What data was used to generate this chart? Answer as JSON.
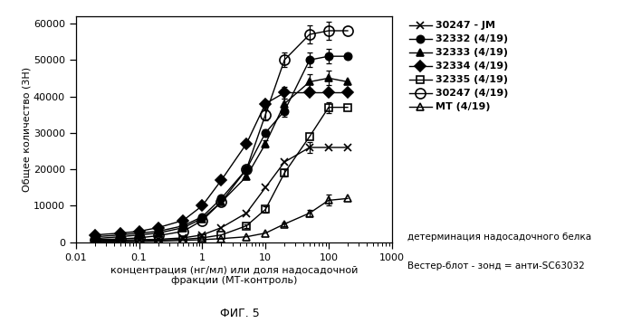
{
  "series": {
    "30247 - JM": {
      "x": [
        0.02,
        0.05,
        0.1,
        0.2,
        0.5,
        1,
        2,
        5,
        10,
        20,
        50,
        100,
        200
      ],
      "y": [
        500,
        600,
        700,
        800,
        1200,
        2000,
        4000,
        8000,
        15000,
        22000,
        26000,
        26000,
        26000
      ],
      "yerr": [
        0,
        0,
        0,
        0,
        0,
        0,
        0,
        0,
        0,
        0,
        1500,
        0,
        0
      ],
      "marker": "x",
      "markersize": 6,
      "linestyle": "-",
      "color": "black",
      "fillstyle": "full",
      "label": "30247 - JM"
    },
    "32332": {
      "x": [
        0.02,
        0.05,
        0.1,
        0.2,
        0.5,
        1,
        2,
        5,
        10,
        20,
        50,
        100,
        200
      ],
      "y": [
        1500,
        2000,
        2500,
        3000,
        4500,
        7000,
        12000,
        20000,
        30000,
        36000,
        50000,
        51000,
        51000
      ],
      "yerr": [
        0,
        0,
        0,
        0,
        0,
        0,
        0,
        500,
        1000,
        1500,
        2000,
        2000,
        0
      ],
      "marker": "o",
      "markersize": 6,
      "linestyle": "-",
      "color": "black",
      "fillstyle": "full",
      "label": "32332 (4/19)"
    },
    "32333": {
      "x": [
        0.02,
        0.05,
        0.1,
        0.2,
        0.5,
        1,
        2,
        5,
        10,
        20,
        50,
        100,
        200
      ],
      "y": [
        1000,
        1500,
        2000,
        2500,
        4000,
        6500,
        11000,
        18000,
        27000,
        38000,
        44000,
        45000,
        44000
      ],
      "yerr": [
        0,
        0,
        0,
        0,
        0,
        0,
        0,
        0,
        1000,
        1500,
        2000,
        2000,
        0
      ],
      "marker": "^",
      "markersize": 6,
      "linestyle": "-",
      "color": "black",
      "fillstyle": "full",
      "label": "32333 (4/19)"
    },
    "32334": {
      "x": [
        0.02,
        0.05,
        0.1,
        0.2,
        0.5,
        1,
        2,
        5,
        10,
        20,
        50,
        100,
        200
      ],
      "y": [
        2000,
        2500,
        3000,
        4000,
        6000,
        10000,
        17000,
        27000,
        38000,
        41000,
        41000,
        41000,
        41000
      ],
      "yerr": [
        0,
        0,
        0,
        0,
        0,
        0,
        0,
        500,
        1000,
        1500,
        0,
        0,
        0
      ],
      "marker": "D",
      "markersize": 6,
      "linestyle": "-",
      "color": "black",
      "fillstyle": "full",
      "label": "32334 (4/19)"
    },
    "32335": {
      "x": [
        0.02,
        0.05,
        0.1,
        0.2,
        0.5,
        1,
        2,
        5,
        10,
        20,
        50,
        100,
        200
      ],
      "y": [
        200,
        300,
        400,
        600,
        800,
        1200,
        2000,
        4500,
        9000,
        19000,
        29000,
        37000,
        37000
      ],
      "yerr": [
        0,
        0,
        0,
        0,
        0,
        0,
        0,
        500,
        800,
        1000,
        0,
        1500,
        0
      ],
      "marker": "s",
      "markersize": 6,
      "linestyle": "-",
      "color": "black",
      "fillstyle": "none",
      "label": "32335 (4/19)"
    },
    "30247": {
      "x": [
        0.02,
        0.05,
        0.1,
        0.2,
        0.5,
        1,
        2,
        5,
        10,
        20,
        50,
        100,
        200
      ],
      "y": [
        700,
        900,
        1200,
        1800,
        3000,
        6000,
        11000,
        20000,
        35000,
        50000,
        57000,
        58000,
        58000
      ],
      "yerr": [
        0,
        0,
        0,
        0,
        0,
        0,
        0,
        500,
        1500,
        2000,
        2500,
        2500,
        0
      ],
      "marker": "o",
      "markersize": 8,
      "linestyle": "-",
      "color": "black",
      "fillstyle": "none",
      "label": "30247 (4/19)"
    },
    "MT": {
      "x": [
        0.02,
        0.05,
        0.1,
        0.2,
        0.5,
        1,
        2,
        5,
        10,
        20,
        50,
        100,
        200
      ],
      "y": [
        100,
        150,
        200,
        300,
        500,
        700,
        1000,
        1500,
        2500,
        5000,
        8000,
        11500,
        12000
      ],
      "yerr": [
        0,
        0,
        0,
        0,
        0,
        0,
        0,
        0,
        0,
        500,
        800,
        1500,
        0
      ],
      "marker": "^",
      "markersize": 6,
      "linestyle": "-",
      "color": "black",
      "fillstyle": "none",
      "label": "MT (4/19)"
    }
  },
  "xlabel": "концентрация (нг/мл) или доля надосадочной\nфракции (МТ-контроль)",
  "ylabel": "Общее количество (3Н)",
  "figcaption": "ФИГ. 5",
  "annotation_line1": "детерминация надосадочного белка",
  "annotation_line2": "Вестер-блот - зонд = анти-SC63032",
  "xlim": [
    0.01,
    1000
  ],
  "ylim": [
    0,
    62000
  ],
  "yticks": [
    0,
    10000,
    20000,
    30000,
    40000,
    50000,
    60000
  ],
  "ytick_labels": [
    "0",
    "10000",
    "20000",
    "30000",
    "40000",
    "50000",
    "60000"
  ],
  "xtick_positions": [
    0.01,
    0.1,
    1,
    10,
    100,
    1000
  ],
  "xtick_labels": [
    "0.01",
    "0.1",
    "1",
    "10",
    "100",
    "1000"
  ],
  "background_color": "#ffffff"
}
